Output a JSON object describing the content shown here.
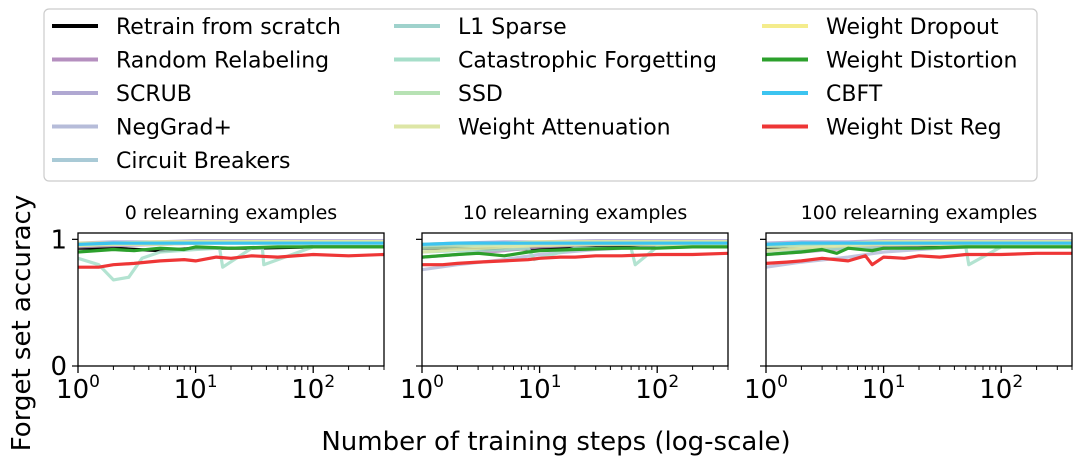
{
  "legend": {
    "entries": [
      {
        "label": "Retrain from scratch",
        "color": "#000000"
      },
      {
        "label": "Random Relabeling",
        "color": "#b58fbf"
      },
      {
        "label": "SCRUB",
        "color": "#b0a8d2"
      },
      {
        "label": "NegGrad+",
        "color": "#b6bcd9"
      },
      {
        "label": "Circuit Breakers",
        "color": "#a9cad6"
      },
      {
        "label": "L1 Sparse",
        "color": "#9fd2cc"
      },
      {
        "label": "Catastrophic Forgetting",
        "color": "#a6dec9"
      },
      {
        "label": "SSD",
        "color": "#b7e2b4"
      },
      {
        "label": "Weight Attenuation",
        "color": "#dde6a6"
      },
      {
        "label": "Weight Dropout",
        "color": "#f4ec8c"
      },
      {
        "label": "Weight Distortion",
        "color": "#2ca02c"
      },
      {
        "label": "CBFT",
        "color": "#3cc4f0"
      },
      {
        "label": "Weight Dist Reg",
        "color": "#ee3636"
      }
    ]
  },
  "chart_data": [
    {
      "type": "line",
      "title": "0 relearning examples",
      "xlabel": "Number of training steps (log-scale)",
      "ylabel": "Forget set accuracy",
      "xscale": "log",
      "xlim": [
        1,
        400
      ],
      "ylim": [
        0,
        1.05
      ],
      "yticks": [
        "0",
        "1"
      ],
      "xticks": [
        "10^0",
        "10^1",
        "10^2"
      ],
      "series": [
        {
          "name": "Retrain from scratch",
          "x": [
            1,
            2,
            5,
            10,
            30,
            100,
            400
          ],
          "y": [
            0.93,
            0.93,
            0.91,
            0.93,
            0.93,
            0.94,
            0.94
          ]
        },
        {
          "name": "Random Relabeling",
          "x": [
            1,
            2,
            5,
            10,
            30,
            100,
            400
          ],
          "y": [
            0.94,
            0.95,
            0.96,
            0.97,
            0.98,
            0.98,
            0.98
          ]
        },
        {
          "name": "SCRUB",
          "x": [
            1,
            2,
            5,
            10,
            30,
            100,
            400
          ],
          "y": [
            0.97,
            0.98,
            0.98,
            0.99,
            0.99,
            0.99,
            0.99
          ]
        },
        {
          "name": "NegGrad+",
          "x": [
            1,
            2,
            5,
            10,
            30,
            100,
            400
          ],
          "y": [
            0.95,
            0.97,
            0.97,
            0.98,
            0.98,
            0.98,
            0.98
          ]
        },
        {
          "name": "Circuit Breakers",
          "x": [
            1,
            2,
            5,
            10,
            30,
            100,
            400
          ],
          "y": [
            0.96,
            0.97,
            0.98,
            0.98,
            0.98,
            0.98,
            0.98
          ]
        },
        {
          "name": "L1 Sparse",
          "x": [
            1,
            2,
            5,
            10,
            30,
            100,
            400
          ],
          "y": [
            0.96,
            0.97,
            0.97,
            0.98,
            0.98,
            0.98,
            0.98
          ]
        },
        {
          "name": "Catastrophic Forgetting",
          "x": [
            1,
            1.5,
            2,
            2.7,
            3.5,
            5,
            10,
            16,
            17,
            30,
            37,
            38,
            100,
            400
          ],
          "y": [
            0.85,
            0.8,
            0.68,
            0.7,
            0.85,
            0.9,
            0.92,
            0.93,
            0.78,
            0.93,
            0.93,
            0.8,
            0.94,
            0.94
          ]
        },
        {
          "name": "SSD",
          "x": [
            1,
            2,
            5,
            10,
            30,
            100,
            400
          ],
          "y": [
            0.95,
            0.96,
            0.97,
            0.97,
            0.98,
            0.98,
            0.98
          ]
        },
        {
          "name": "Weight Attenuation",
          "x": [
            1,
            2,
            5,
            10,
            30,
            100,
            400
          ],
          "y": [
            0.95,
            0.96,
            0.96,
            0.97,
            0.97,
            0.97,
            0.97
          ]
        },
        {
          "name": "Weight Dropout",
          "x": [
            1,
            2,
            5,
            10,
            30,
            100,
            400
          ],
          "y": [
            0.97,
            0.97,
            0.98,
            0.98,
            0.98,
            0.98,
            0.98
          ]
        },
        {
          "name": "Weight Distortion",
          "x": [
            1,
            2,
            3,
            5,
            8,
            10,
            20,
            50,
            100,
            200,
            400
          ],
          "y": [
            0.9,
            0.92,
            0.91,
            0.93,
            0.92,
            0.94,
            0.93,
            0.94,
            0.94,
            0.94,
            0.94
          ]
        },
        {
          "name": "CBFT",
          "x": [
            1,
            2,
            5,
            10,
            30,
            100,
            400
          ],
          "y": [
            0.96,
            0.97,
            0.97,
            0.97,
            0.97,
            0.97,
            0.97
          ]
        },
        {
          "name": "Weight Dist Reg",
          "x": [
            1,
            1.5,
            2,
            3,
            5,
            8,
            10,
            15,
            20,
            30,
            50,
            100,
            200,
            400
          ],
          "y": [
            0.78,
            0.78,
            0.8,
            0.81,
            0.83,
            0.84,
            0.83,
            0.86,
            0.85,
            0.87,
            0.86,
            0.88,
            0.87,
            0.88
          ]
        }
      ]
    },
    {
      "type": "line",
      "title": "10 relearning examples",
      "xlabel": "Number of training steps (log-scale)",
      "ylabel": "Forget set accuracy",
      "xscale": "log",
      "xlim": [
        1,
        400
      ],
      "ylim": [
        0,
        1.05
      ],
      "yticks": [
        "0",
        "1"
      ],
      "xticks": [
        "10^0",
        "10^1",
        "10^2"
      ],
      "series": [
        {
          "name": "Retrain from scratch",
          "x": [
            1,
            2,
            5,
            10,
            30,
            100,
            400
          ],
          "y": [
            0.93,
            0.93,
            0.92,
            0.93,
            0.94,
            0.94,
            0.94
          ]
        },
        {
          "name": "Random Relabeling",
          "x": [
            1,
            2,
            5,
            10,
            30,
            100,
            400
          ],
          "y": [
            0.86,
            0.88,
            0.91,
            0.94,
            0.96,
            0.97,
            0.97
          ]
        },
        {
          "name": "SCRUB",
          "x": [
            1,
            2,
            5,
            10,
            30,
            100,
            400
          ],
          "y": [
            0.96,
            0.97,
            0.98,
            0.98,
            0.99,
            0.99,
            0.99
          ]
        },
        {
          "name": "NegGrad+",
          "x": [
            1,
            2,
            5,
            10,
            30,
            100,
            400
          ],
          "y": [
            0.76,
            0.8,
            0.84,
            0.88,
            0.92,
            0.94,
            0.95
          ]
        },
        {
          "name": "Circuit Breakers",
          "x": [
            1,
            2,
            5,
            10,
            30,
            100,
            400
          ],
          "y": [
            0.95,
            0.96,
            0.97,
            0.97,
            0.98,
            0.98,
            0.98
          ]
        },
        {
          "name": "L1 Sparse",
          "x": [
            1,
            2,
            5,
            10,
            30,
            100,
            400
          ],
          "y": [
            0.95,
            0.96,
            0.97,
            0.97,
            0.98,
            0.98,
            0.98
          ]
        },
        {
          "name": "Catastrophic Forgetting",
          "x": [
            1,
            2,
            5,
            8,
            9,
            20,
            60,
            65,
            100,
            400
          ],
          "y": [
            0.9,
            0.91,
            0.92,
            0.93,
            0.84,
            0.93,
            0.93,
            0.8,
            0.94,
            0.94
          ]
        },
        {
          "name": "SSD",
          "x": [
            1,
            2,
            5,
            10,
            30,
            100,
            400
          ],
          "y": [
            0.93,
            0.94,
            0.95,
            0.96,
            0.97,
            0.97,
            0.97
          ]
        },
        {
          "name": "Weight Attenuation",
          "x": [
            1,
            2,
            5,
            10,
            30,
            100,
            400
          ],
          "y": [
            0.9,
            0.92,
            0.94,
            0.95,
            0.96,
            0.96,
            0.96
          ]
        },
        {
          "name": "Weight Dropout",
          "x": [
            1,
            2,
            5,
            10,
            30,
            100,
            400
          ],
          "y": [
            0.96,
            0.97,
            0.97,
            0.98,
            0.98,
            0.98,
            0.98
          ]
        },
        {
          "name": "Weight Distortion",
          "x": [
            1,
            2,
            3,
            5,
            8,
            10,
            20,
            50,
            100,
            200,
            400
          ],
          "y": [
            0.86,
            0.88,
            0.89,
            0.87,
            0.9,
            0.91,
            0.92,
            0.93,
            0.93,
            0.94,
            0.94
          ]
        },
        {
          "name": "CBFT",
          "x": [
            1,
            2,
            5,
            10,
            30,
            100,
            400
          ],
          "y": [
            0.96,
            0.97,
            0.97,
            0.97,
            0.97,
            0.97,
            0.97
          ]
        },
        {
          "name": "Weight Dist Reg",
          "x": [
            1,
            1.5,
            2,
            3,
            5,
            8,
            10,
            15,
            20,
            30,
            50,
            100,
            200,
            400
          ],
          "y": [
            0.8,
            0.8,
            0.81,
            0.82,
            0.83,
            0.84,
            0.85,
            0.86,
            0.86,
            0.87,
            0.87,
            0.88,
            0.88,
            0.89
          ]
        }
      ]
    },
    {
      "type": "line",
      "title": "100 relearning examples",
      "xlabel": "Number of training steps (log-scale)",
      "ylabel": "Forget set accuracy",
      "xscale": "log",
      "xlim": [
        1,
        400
      ],
      "ylim": [
        0,
        1.05
      ],
      "yticks": [
        "0",
        "1"
      ],
      "xticks": [
        "10^0",
        "10^1",
        "10^2"
      ],
      "series": [
        {
          "name": "Retrain from scratch",
          "x": [
            1,
            2,
            5,
            10,
            30,
            100,
            400
          ],
          "y": [
            0.93,
            0.92,
            0.93,
            0.93,
            0.94,
            0.94,
            0.94
          ]
        },
        {
          "name": "Random Relabeling",
          "x": [
            1,
            2,
            5,
            10,
            30,
            100,
            400
          ],
          "y": [
            0.88,
            0.9,
            0.93,
            0.95,
            0.96,
            0.97,
            0.97
          ]
        },
        {
          "name": "SCRUB",
          "x": [
            1,
            2,
            5,
            10,
            30,
            100,
            400
          ],
          "y": [
            0.97,
            0.98,
            0.98,
            0.99,
            0.99,
            0.99,
            0.99
          ]
        },
        {
          "name": "NegGrad+",
          "x": [
            1,
            2,
            5,
            10,
            30,
            100,
            400
          ],
          "y": [
            0.78,
            0.82,
            0.86,
            0.9,
            0.93,
            0.95,
            0.96
          ]
        },
        {
          "name": "Circuit Breakers",
          "x": [
            1,
            2,
            5,
            10,
            30,
            100,
            400
          ],
          "y": [
            0.95,
            0.96,
            0.97,
            0.97,
            0.98,
            0.98,
            0.98
          ]
        },
        {
          "name": "L1 Sparse",
          "x": [
            1,
            2,
            5,
            10,
            30,
            100,
            400
          ],
          "y": [
            0.95,
            0.96,
            0.97,
            0.98,
            0.98,
            0.98,
            0.98
          ]
        },
        {
          "name": "Catastrophic Forgetting",
          "x": [
            1,
            2,
            5,
            10,
            30,
            50,
            53,
            100,
            400
          ],
          "y": [
            0.91,
            0.92,
            0.93,
            0.93,
            0.93,
            0.94,
            0.8,
            0.94,
            0.94
          ]
        },
        {
          "name": "SSD",
          "x": [
            1,
            2,
            5,
            10,
            30,
            100,
            400
          ],
          "y": [
            0.94,
            0.95,
            0.96,
            0.97,
            0.97,
            0.97,
            0.97
          ]
        },
        {
          "name": "Weight Attenuation",
          "x": [
            1,
            2,
            5,
            10,
            30,
            100,
            400
          ],
          "y": [
            0.91,
            0.93,
            0.95,
            0.96,
            0.96,
            0.96,
            0.96
          ]
        },
        {
          "name": "Weight Dropout",
          "x": [
            1,
            2,
            5,
            10,
            30,
            100,
            400
          ],
          "y": [
            0.96,
            0.97,
            0.97,
            0.98,
            0.98,
            0.98,
            0.98
          ]
        },
        {
          "name": "Weight Distortion",
          "x": [
            1,
            2,
            3,
            4,
            5,
            8,
            10,
            20,
            50,
            100,
            200,
            400
          ],
          "y": [
            0.88,
            0.9,
            0.92,
            0.89,
            0.93,
            0.91,
            0.93,
            0.93,
            0.94,
            0.94,
            0.94,
            0.94
          ]
        },
        {
          "name": "CBFT",
          "x": [
            1,
            2,
            5,
            10,
            30,
            100,
            400
          ],
          "y": [
            0.96,
            0.97,
            0.97,
            0.97,
            0.97,
            0.97,
            0.97
          ]
        },
        {
          "name": "Weight Dist Reg",
          "x": [
            1,
            1.5,
            2,
            3,
            5,
            7,
            8,
            10,
            15,
            20,
            30,
            50,
            100,
            200,
            400
          ],
          "y": [
            0.81,
            0.82,
            0.83,
            0.85,
            0.83,
            0.87,
            0.8,
            0.86,
            0.85,
            0.87,
            0.86,
            0.88,
            0.88,
            0.89,
            0.89
          ]
        }
      ]
    }
  ]
}
